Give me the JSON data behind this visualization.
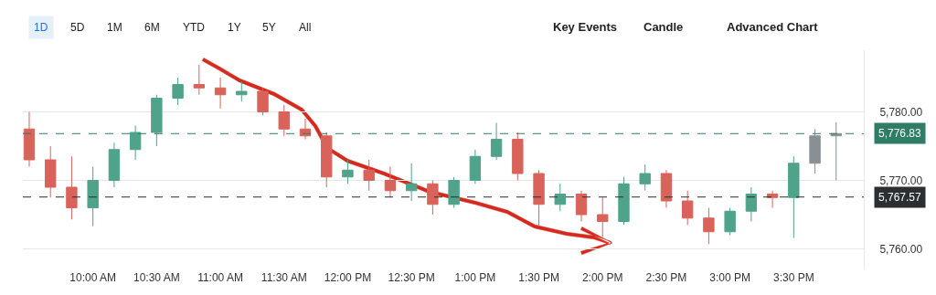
{
  "chart_data": {
    "type": "candlestick",
    "annotations": [
      "1D",
      "5D",
      "1M",
      "6M",
      "YTD",
      "1Y",
      "5Y",
      "All",
      "Key Events",
      "Candle",
      "Advanced Chart"
    ],
    "x": [
      9.5,
      9.6667,
      9.8333,
      10.0,
      10.1667,
      10.3333,
      10.5,
      10.6667,
      10.8333,
      11.0,
      11.1667,
      11.3333,
      11.5,
      11.6667,
      11.8333,
      12.0,
      12.1667,
      12.3333,
      12.5,
      12.6667,
      12.8333,
      13.0,
      13.1667,
      13.3333,
      13.5,
      13.6667,
      13.8333,
      14.0,
      14.1667,
      14.3333,
      14.5,
      14.6667,
      14.8333,
      15.0,
      15.1667,
      15.3333,
      15.5,
      15.6667,
      15.8333
    ],
    "ohlc": [
      [
        5777.5,
        5780,
        5772,
        5773
      ],
      [
        5773,
        5775,
        5767.5,
        5769
      ],
      [
        5769,
        5773.5,
        5764.3,
        5766
      ],
      [
        5766,
        5772,
        5763.3,
        5770
      ],
      [
        5770,
        5775.5,
        5769,
        5774.5
      ],
      [
        5774.5,
        5778,
        5773,
        5777
      ],
      [
        5777,
        5782.5,
        5775,
        5782
      ],
      [
        5782,
        5785,
        5781,
        5784
      ],
      [
        5784,
        5786.9,
        5782.5,
        5783.5
      ],
      [
        5783.5,
        5785,
        5780.5,
        5782.5
      ],
      [
        5782.5,
        5784.5,
        5781.5,
        5783
      ],
      [
        5783,
        5783.5,
        5779.5,
        5780
      ],
      [
        5780,
        5781,
        5776.5,
        5777.5
      ],
      [
        5777.5,
        5779,
        5776,
        5776.5
      ],
      [
        5776.5,
        5777,
        5769,
        5770.5
      ],
      [
        5770.5,
        5773,
        5769.5,
        5771.5
      ],
      [
        5771.5,
        5773,
        5768.5,
        5770
      ],
      [
        5770,
        5772,
        5767.5,
        5768.5
      ],
      [
        5768.5,
        5772.5,
        5767,
        5769.5
      ],
      [
        5769.5,
        5770,
        5765,
        5766.5
      ],
      [
        5766.5,
        5770.5,
        5766,
        5770
      ],
      [
        5770,
        5774.5,
        5769.5,
        5773.5
      ],
      [
        5773.5,
        5778.4,
        5773,
        5776
      ],
      [
        5776,
        5777,
        5770,
        5771
      ],
      [
        5771,
        5771.5,
        5763.3,
        5766.5
      ],
      [
        5766.5,
        5769.5,
        5765.5,
        5768
      ],
      [
        5768,
        5768.5,
        5764,
        5765
      ],
      [
        5765,
        5767.5,
        5761.7,
        5764
      ],
      [
        5764,
        5770.5,
        5763.5,
        5769.5
      ],
      [
        5769.5,
        5772.3,
        5768.5,
        5771
      ],
      [
        5771,
        5771.5,
        5766,
        5767
      ],
      [
        5767,
        5768.5,
        5763.5,
        5764.5
      ],
      [
        5764.5,
        5766,
        5760.7,
        5762.5
      ],
      [
        5762.5,
        5766,
        5762,
        5765.5
      ],
      [
        5765.5,
        5769,
        5764,
        5768
      ],
      [
        5768,
        5768.5,
        5766,
        5767.5
      ],
      [
        5767.5,
        5773.5,
        5761.6,
        5772.5
      ],
      [
        5772.5,
        5777.5,
        5771,
        5776.5
      ],
      [
        5776.5,
        5778.5,
        5770,
        5776.83
      ]
    ],
    "colors": [
      "#d9635b",
      "#d9635b",
      "#d9635b",
      "#4fa38a",
      "#4fa38a",
      "#4fa38a",
      "#4fa38a",
      "#4fa38a",
      "#d9635b",
      "#d9635b",
      "#4fa38a",
      "#d9635b",
      "#d9635b",
      "#d9635b",
      "#d9635b",
      "#4fa38a",
      "#d9635b",
      "#d9635b",
      "#4fa38a",
      "#d9635b",
      "#4fa38a",
      "#4fa38a",
      "#4fa38a",
      "#d9635b",
      "#d9635b",
      "#4fa38a",
      "#d9635b",
      "#d9635b",
      "#4fa38a",
      "#4fa38a",
      "#d9635b",
      "#d9635b",
      "#d9635b",
      "#4fa38a",
      "#4fa38a",
      "#d9635b",
      "#4fa38a",
      "#8a8f94",
      "#8a8f94"
    ],
    "xlim": [
      9.45,
      16.05
    ],
    "xticks": [
      {
        "value": 10,
        "label": "10:00 AM"
      },
      {
        "value": 10.5,
        "label": "10:30 AM"
      },
      {
        "value": 11,
        "label": "11:00 AM"
      },
      {
        "value": 11.5,
        "label": "11:30 AM"
      },
      {
        "value": 12,
        "label": "12:00 PM"
      },
      {
        "value": 12.5,
        "label": "12:30 PM"
      },
      {
        "value": 13,
        "label": "1:00 PM"
      },
      {
        "value": 13.5,
        "label": "1:30 PM"
      },
      {
        "value": 14,
        "label": "2:00 PM"
      },
      {
        "value": 14.5,
        "label": "2:30 PM"
      },
      {
        "value": 15,
        "label": "3:00 PM"
      },
      {
        "value": 15.5,
        "label": "3:30 PM"
      }
    ],
    "ylim": [
      5757,
      5789
    ],
    "yticks": [
      {
        "value": 5760,
        "label": "5,760.00"
      },
      {
        "value": 5770,
        "label": "5,770.00"
      },
      {
        "value": 5780,
        "label": "5,780.00"
      }
    ],
    "grid": "y",
    "legend": false,
    "ref_lines": [
      {
        "axis": "y",
        "value": 5776.83,
        "label": "5,776.83",
        "color": "#2e7d64",
        "line_style": "dashed"
      },
      {
        "axis": "y",
        "value": 5767.57,
        "label": "5,767.57",
        "color": "#2b2f31",
        "line_style": "dashed"
      }
    ]
  }
}
